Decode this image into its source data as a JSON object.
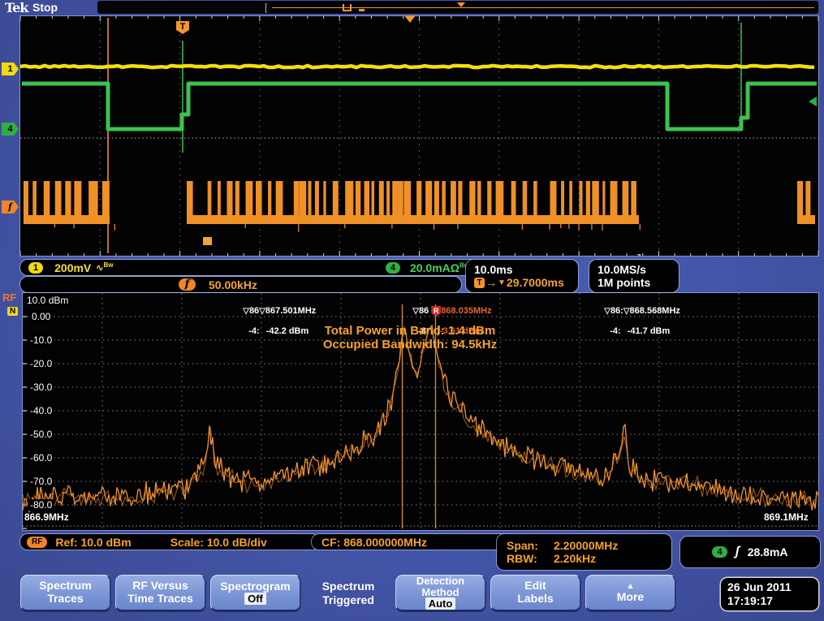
{
  "header": {
    "logo": "Tek",
    "status": "Stop"
  },
  "side_badges": {
    "ch1": "1",
    "ch4": "4",
    "rf_time": "f",
    "rf": "RF",
    "n": "N"
  },
  "icons": {
    "t_flag": "T",
    "arrow_right": "→",
    "tri_down": "▼",
    "tri_marker": "▽",
    "tri_up": "▲",
    "edge": "ʃ",
    "wave": "∿",
    "bw": "Bw",
    "ohm": "Ω"
  },
  "readouts": {
    "ch1": {
      "badge": "1",
      "value": "200mV"
    },
    "ch4": {
      "badge": "4",
      "value": "20.0mA"
    },
    "freq": {
      "badge": "f",
      "value": "50.00kHz"
    },
    "timebase": {
      "scale": "10.0ms",
      "position": "29.7000ms"
    },
    "acquisition": {
      "rate": "10.0MS/s",
      "points": "1M points"
    }
  },
  "spectrum": {
    "markers": {
      "a": {
        "clip_freq": "86",
        "clip_amp": "-4:",
        "freq": "867.501MHz",
        "amp": "-42.2 dBm"
      },
      "r": {
        "clip_freq": "86",
        "clip_amp": "-8",
        "flag": "R",
        "freq": "868.035MHz",
        "amp": "-3.61 dBm"
      },
      "b": {
        "clip_freq": "86:",
        "clip_amp": "-4:",
        "freq": "868.568MHz",
        "amp": "-41.7 dBm"
      }
    },
    "annotations": {
      "total_power": "Total Power in Band: 1.4 dBm",
      "occupied_bw": "Occupied Bandwidth: 94.5kHz"
    },
    "y_axis": {
      "ref": "10.0 dBm",
      "ticks": [
        "0.00",
        "-10.0",
        "-20.0",
        "-30.0",
        "-40.0",
        "-50.0",
        "-60.0",
        "-70.0",
        "-80.0"
      ]
    },
    "x_start": "866.9MHz",
    "x_stop": "869.1MHz",
    "bottom": {
      "rf_badge": "RF",
      "ref": "Ref: 10.0 dBm",
      "scale": "Scale: 10.0 dB/div",
      "cf": "CF: 868.000000MHz",
      "span_label": "Span:",
      "span": "2.20000MHz",
      "rbw_label": "RBW:",
      "rbw": "2.20kHz"
    }
  },
  "trigger_readout": {
    "badge": "4",
    "value": "28.8mA"
  },
  "menu": {
    "spectrum_traces": {
      "l1": "Spectrum",
      "l2": "Traces"
    },
    "rf_vs_time": {
      "l1": "RF Versus",
      "l2": "Time Traces"
    },
    "spectrogram": {
      "l1": "Spectrogram",
      "value": "Off"
    },
    "mode": {
      "l1": "Spectrum",
      "l2": "Triggered"
    },
    "detection": {
      "l1": "Detection",
      "l2": "Method",
      "value": "Auto"
    },
    "edit_labels": {
      "l1": "Edit",
      "l2": "Labels"
    },
    "more": {
      "label": "More"
    },
    "datetime": {
      "date": "26 Jun 2011",
      "time": "17:19:17"
    }
  }
}
